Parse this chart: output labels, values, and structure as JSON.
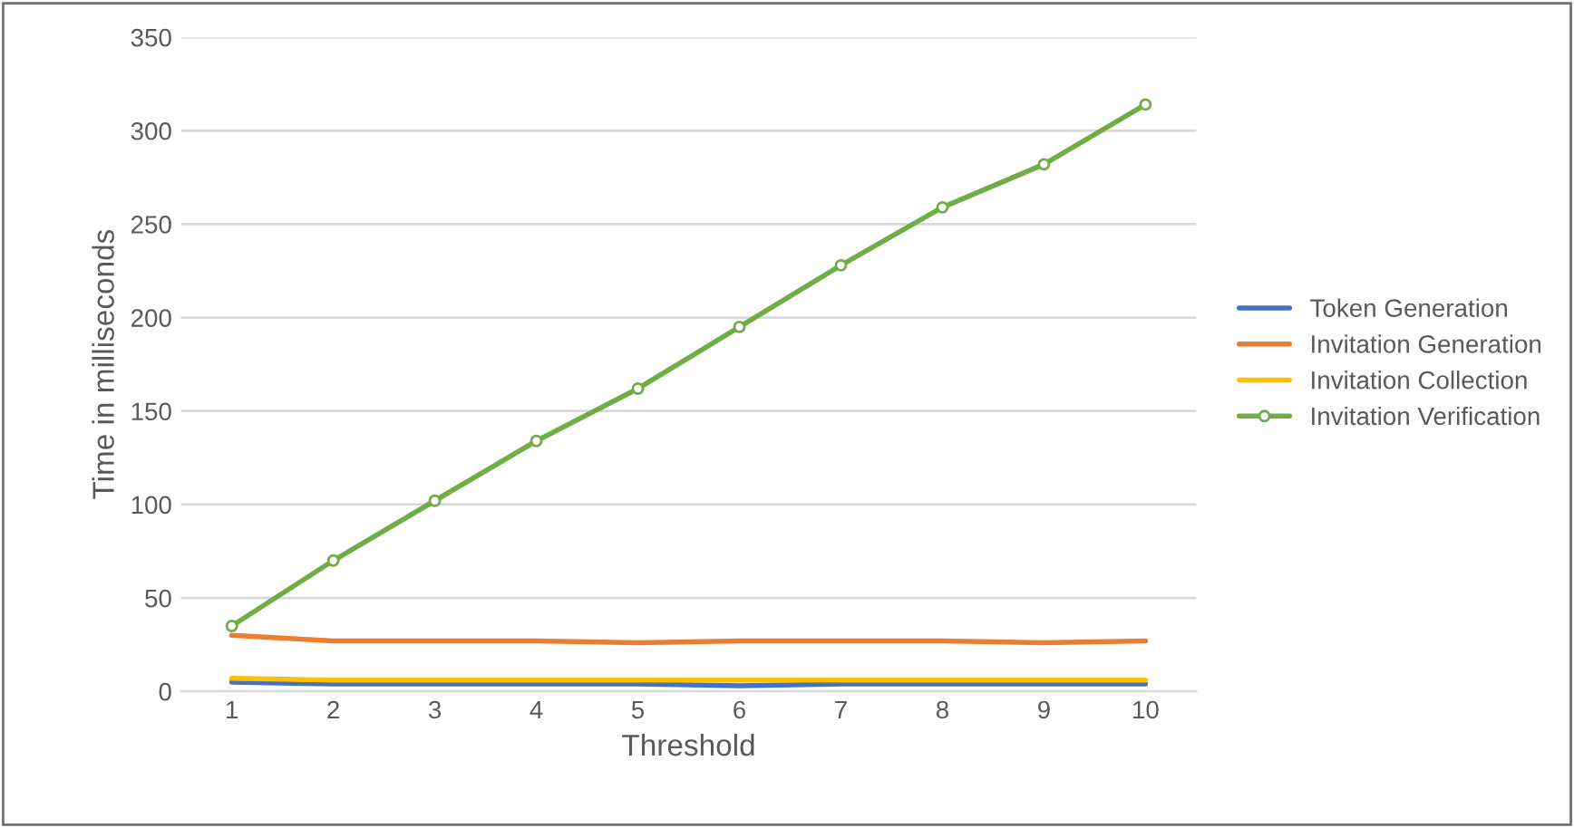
{
  "chart_data": {
    "type": "line",
    "xlabel": "Threshold",
    "ylabel": "Time in milliseconds",
    "categories": [
      "1",
      "2",
      "3",
      "4",
      "5",
      "6",
      "7",
      "8",
      "9",
      "10"
    ],
    "series": [
      {
        "name": "Token Generation",
        "color": "#4472c4",
        "values": [
          5,
          4,
          4,
          4,
          4,
          3,
          4,
          4,
          4,
          4
        ]
      },
      {
        "name": "Invitation Generation",
        "color": "#ed7d31",
        "values": [
          30,
          27,
          27,
          27,
          26,
          27,
          27,
          27,
          26,
          27
        ]
      },
      {
        "name": "Invitation Collection",
        "color": "#ffc000",
        "values": [
          7,
          6,
          6,
          6,
          6,
          6,
          6,
          6,
          6,
          6
        ]
      },
      {
        "name": "Invitation Verification",
        "color": "#70ad47",
        "marker": "circle",
        "values": [
          35,
          70,
          102,
          134,
          162,
          195,
          228,
          259,
          282,
          314
        ]
      }
    ],
    "ylim": [
      0,
      350
    ],
    "yticks": [
      0,
      50,
      100,
      150,
      200,
      250,
      300,
      350
    ],
    "grid": "y",
    "legend": "right"
  }
}
